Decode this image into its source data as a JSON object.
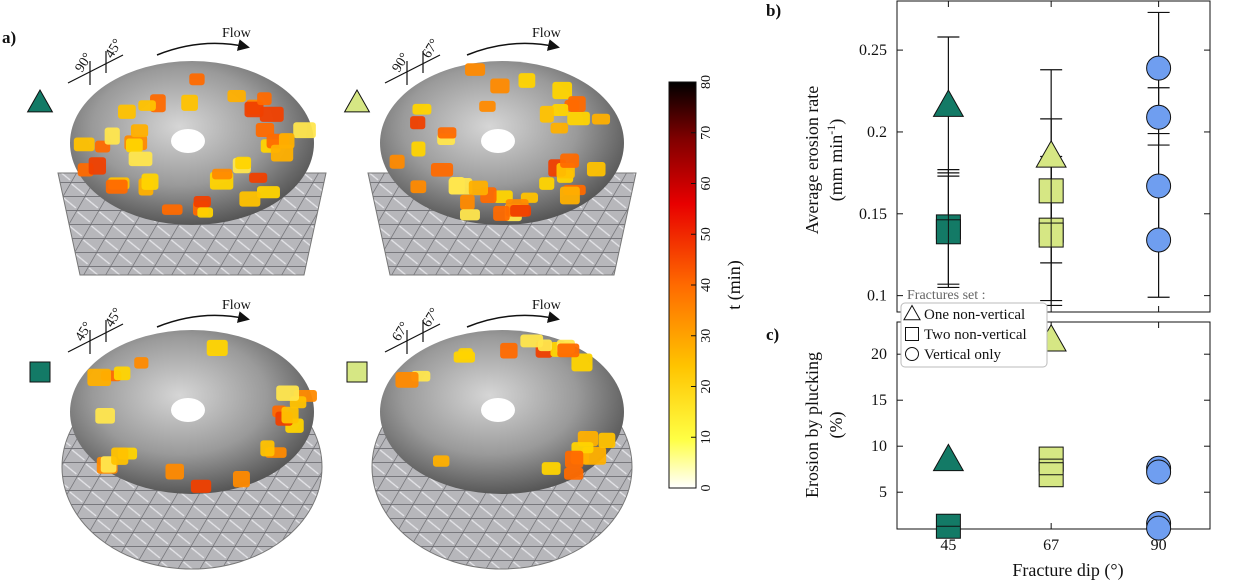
{
  "panel_a": {
    "label": "a)",
    "flow_label": "Flow",
    "discs": [
      {
        "marker": "triangle",
        "color": "#137a66",
        "angle_labels": [
          "90°",
          "45°"
        ]
      },
      {
        "marker": "triangle",
        "color": "#d6e784",
        "angle_labels": [
          "90°",
          "67°"
        ]
      },
      {
        "marker": "square",
        "color": "#137a66",
        "angle_labels": [
          "45°",
          "45°"
        ]
      },
      {
        "marker": "square",
        "color": "#d6e784",
        "angle_labels": [
          "67°",
          "67°"
        ]
      }
    ],
    "colorbar": {
      "label": "t (min)",
      "ticks": [
        0,
        10,
        20,
        30,
        40,
        50,
        60,
        70,
        80
      ],
      "range": [
        0,
        80
      ]
    }
  },
  "chart_data": [
    {
      "type": "scatter",
      "panel": "b)",
      "ylabel_line1": "Average erosion rate",
      "ylabel_line2": "(mm min",
      "ylabel_sup": "-1",
      "ylabel_close": ")",
      "xlabel": "",
      "yticks": [
        0.1,
        0.15,
        0.2,
        0.25
      ],
      "ylim": [
        0.09,
        0.28
      ],
      "xlim": [
        34,
        101
      ],
      "points": [
        {
          "x": 45,
          "y": 0.216,
          "marker": "triangle",
          "color": "#137a66",
          "err": [
            0.175,
            0.258
          ]
        },
        {
          "x": 45,
          "y": 0.142,
          "marker": "square",
          "color": "#137a66",
          "err": [
            0.107,
            0.177
          ]
        },
        {
          "x": 45,
          "y": 0.139,
          "marker": "square",
          "color": "#137a66",
          "err": [
            0.105,
            0.173
          ]
        },
        {
          "x": 67,
          "y": 0.185,
          "marker": "triangle",
          "color": "#d6e784",
          "err": [
            0.133,
            0.238
          ]
        },
        {
          "x": 67,
          "y": 0.164,
          "marker": "square",
          "color": "#d6e784",
          "err": [
            0.12,
            0.208
          ]
        },
        {
          "x": 67,
          "y": 0.14,
          "marker": "square",
          "color": "#d6e784",
          "err": [
            0.097,
            0.185
          ]
        },
        {
          "x": 67,
          "y": 0.137,
          "marker": "square",
          "color": "#d6e784",
          "err": [
            0.094,
            0.18
          ]
        },
        {
          "x": 90,
          "y": 0.239,
          "marker": "circle",
          "color": "#6f9ef0",
          "err": [
            0.206,
            0.273
          ]
        },
        {
          "x": 90,
          "y": 0.209,
          "marker": "circle",
          "color": "#6f9ef0",
          "err": [
            0.192,
            0.227
          ]
        },
        {
          "x": 90,
          "y": 0.167,
          "marker": "circle",
          "color": "#6f9ef0",
          "err": [
            0.134,
            0.199
          ]
        },
        {
          "x": 90,
          "y": 0.134,
          "marker": "circle",
          "color": "#6f9ef0",
          "err": [
            0.099,
            0.168
          ]
        }
      ]
    },
    {
      "type": "scatter",
      "panel": "c)",
      "ylabel_line1": "Erosion by plucking",
      "ylabel_line2": "(%)",
      "xlabel": "Fracture dip (°)",
      "xticks": [
        45,
        67,
        90
      ],
      "yticks": [
        5,
        10,
        15,
        20
      ],
      "ylim": [
        1,
        23.5
      ],
      "xlim": [
        34,
        101
      ],
      "points": [
        {
          "x": 45,
          "y": 8.5,
          "marker": "triangle",
          "color": "#137a66"
        },
        {
          "x": 45,
          "y": 1.3,
          "marker": "square",
          "color": "#137a66"
        },
        {
          "x": 67,
          "y": 21.5,
          "marker": "triangle",
          "color": "#d6e784"
        },
        {
          "x": 67,
          "y": 8.6,
          "marker": "square",
          "color": "#d6e784"
        },
        {
          "x": 67,
          "y": 6.9,
          "marker": "square",
          "color": "#d6e784"
        },
        {
          "x": 90,
          "y": 7.6,
          "marker": "circle",
          "color": "#6f9ef0"
        },
        {
          "x": 90,
          "y": 7.2,
          "marker": "circle",
          "color": "#6f9ef0"
        },
        {
          "x": 90,
          "y": 1.6,
          "marker": "circle",
          "color": "#6f9ef0"
        },
        {
          "x": 90,
          "y": 1.1,
          "marker": "circle",
          "color": "#6f9ef0"
        }
      ],
      "legend": {
        "title": "Fractures set :",
        "entries": [
          {
            "marker": "triangle",
            "label": "One non-vertical"
          },
          {
            "marker": "square",
            "label": "Two non-vertical"
          },
          {
            "marker": "circle",
            "label": "Vertical only"
          }
        ]
      }
    }
  ]
}
